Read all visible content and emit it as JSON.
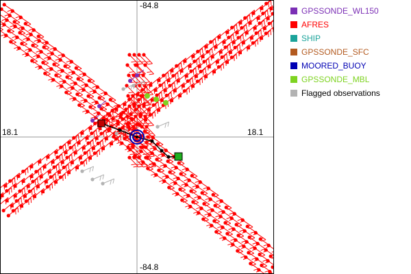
{
  "map": {
    "labels": {
      "top": "-84.8",
      "bottom": "-84.8",
      "left": "18.1",
      "right": "18.1"
    }
  },
  "legend": [
    {
      "label": "GPSSONDE_WL150",
      "color": "#7b2fb5"
    },
    {
      "label": "AFRES",
      "color": "#ff0000"
    },
    {
      "label": "SHIP",
      "color": "#1aa39a"
    },
    {
      "label": "GPSSONDE_SFC",
      "color": "#b35a1f"
    },
    {
      "label": "MOORED_BUOY",
      "color": "#0000b3"
    },
    {
      "label": "GPSSONDE_MBL",
      "color": "#7ed321"
    },
    {
      "label": "Flagged observations",
      "color": "#b3b3b3"
    }
  ],
  "colors": {
    "afres": "#ff0000",
    "flagged": "#b3b3b3",
    "track": "#000000",
    "crosshair": "#999999"
  }
}
